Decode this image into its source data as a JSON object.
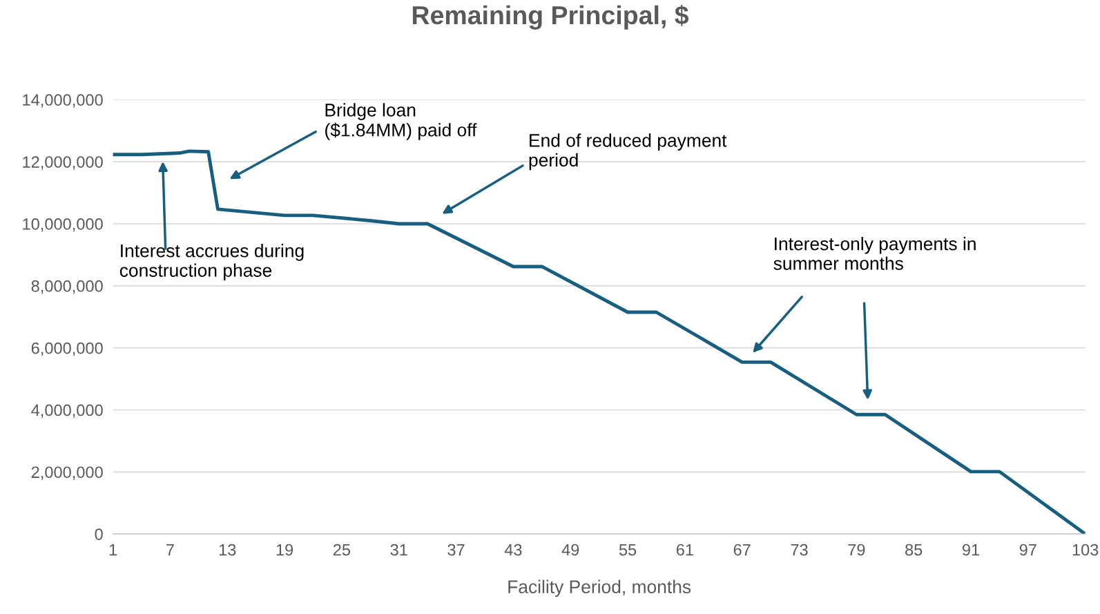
{
  "chart_data": {
    "type": "line",
    "title": "Remaining Principal, $",
    "xlabel": "Facility Period, months",
    "x": [
      1,
      4,
      8,
      9,
      11,
      12,
      19,
      22,
      28,
      31,
      34,
      43,
      46,
      55,
      58,
      67,
      70,
      79,
      82,
      91,
      94,
      103
    ],
    "series": [
      {
        "color": "#175e7f",
        "values": [
          12230000,
          12230000,
          12280000,
          12340000,
          12320000,
          10470000,
          10270000,
          10270000,
          10100000,
          10000000,
          10000000,
          8620000,
          8620000,
          7150000,
          7150000,
          5540000,
          5540000,
          3850000,
          3850000,
          2010000,
          2010000,
          0
        ]
      }
    ],
    "xlim": [
      1,
      103
    ],
    "xticks": [
      1,
      7,
      13,
      19,
      25,
      31,
      37,
      43,
      49,
      55,
      61,
      67,
      73,
      79,
      85,
      91,
      97,
      103
    ],
    "ylim": [
      0,
      14000000
    ],
    "yticks": [
      {
        "value": 0,
        "label": "0"
      },
      {
        "value": 2000000,
        "label": "2,000,000"
      },
      {
        "value": 4000000,
        "label": "4,000,000"
      },
      {
        "value": 6000000,
        "label": "6,000,000"
      },
      {
        "value": 8000000,
        "label": "8,000,000"
      },
      {
        "value": 10000000,
        "label": "10,000,000"
      },
      {
        "value": 12000000,
        "label": "12,000,000"
      },
      {
        "value": 14000000,
        "label": "14,000,000"
      }
    ],
    "grid": "y",
    "marker": "none",
    "line_style": "solid",
    "annotations": [
      "Interest accrues during\nconstruction phase",
      "Bridge loan\n($1.84MM) paid off",
      "End of reduced payment\nperiod",
      "Interest-only payments in\nsummer months"
    ]
  }
}
